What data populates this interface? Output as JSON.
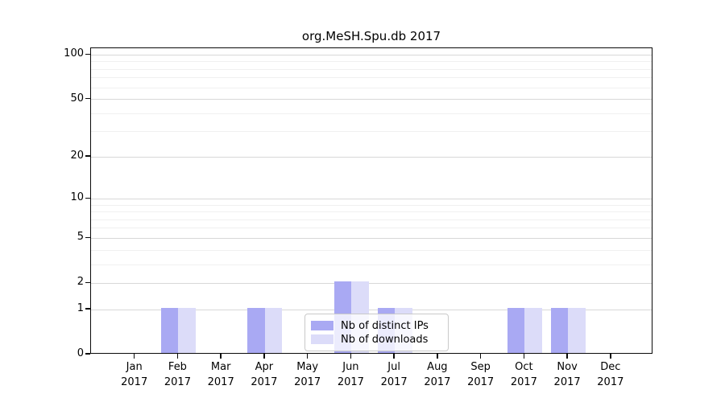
{
  "figure": {
    "title": "org.MeSH.Spu.db 2017",
    "year_label": "2017"
  },
  "chart_data": {
    "type": "bar",
    "title": "org.MeSH.Spu.db 2017",
    "categories": [
      "Jan 2017",
      "Feb 2017",
      "Mar 2017",
      "Apr 2017",
      "May 2017",
      "Jun 2017",
      "Jul 2017",
      "Aug 2017",
      "Sep 2017",
      "Oct 2017",
      "Nov 2017",
      "Dec 2017"
    ],
    "months": [
      "Jan",
      "Feb",
      "Mar",
      "Apr",
      "May",
      "Jun",
      "Jul",
      "Aug",
      "Sep",
      "Oct",
      "Nov",
      "Dec"
    ],
    "series": [
      {
        "name": "Nb of distinct IPs",
        "color": "#a9a9f3",
        "values": [
          0,
          1,
          0,
          1,
          0,
          2,
          1,
          0,
          0,
          1,
          1,
          0
        ]
      },
      {
        "name": "Nb of downloads",
        "color": "#dcdcf9",
        "values": [
          0,
          1,
          0,
          1,
          0,
          2,
          1,
          0,
          0,
          1,
          1,
          0
        ]
      }
    ],
    "xlabel": "",
    "ylabel": "",
    "yscale": "log10(v+1)",
    "ylim": [
      0,
      111
    ],
    "yticks": [
      0,
      1,
      2,
      5,
      10,
      20,
      50,
      100
    ],
    "minor_gridlines": [
      3,
      4,
      6,
      7,
      8,
      9,
      30,
      40,
      60,
      70,
      80,
      90
    ],
    "grid": true,
    "legend_position": "lower center",
    "bar_baseline": 0,
    "colors": {
      "frame": "#0a0a0a",
      "grid_major": "#d8d8d8",
      "grid_minor": "#f0f0f0",
      "legend_border": "#c9c9c9"
    }
  }
}
